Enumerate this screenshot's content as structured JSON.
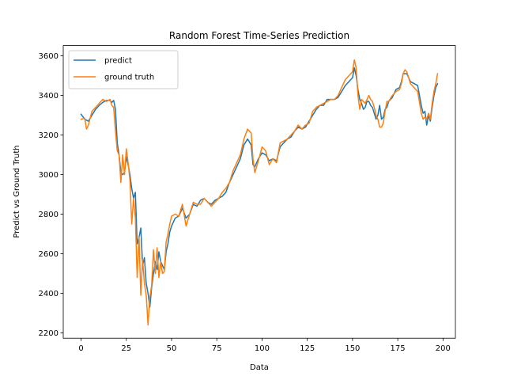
{
  "chart_data": {
    "type": "line",
    "title": "Random Forest Time-Series Prediction",
    "xlabel": "Data",
    "ylabel": "Predict vs Ground Truth",
    "xlim": [
      -9.85,
      206.85
    ],
    "ylim": [
      2173,
      3652
    ],
    "xticks": [
      0,
      25,
      50,
      75,
      100,
      125,
      150,
      175,
      200
    ],
    "yticks": [
      2200,
      2400,
      2600,
      2800,
      3000,
      3200,
      3400,
      3600
    ],
    "grid": false,
    "legend_position": "top-left",
    "series": [
      {
        "name": "predict",
        "color": "#1f77b4",
        "points": [
          [
            0,
            3305
          ],
          [
            2,
            3280
          ],
          [
            4,
            3270
          ],
          [
            6,
            3300
          ],
          [
            8,
            3330
          ],
          [
            10,
            3350
          ],
          [
            12,
            3365
          ],
          [
            14,
            3375
          ],
          [
            16,
            3375
          ],
          [
            17,
            3365
          ],
          [
            18,
            3375
          ],
          [
            19,
            3330
          ],
          [
            20,
            3160
          ],
          [
            21,
            3100
          ],
          [
            22,
            3010
          ],
          [
            23,
            3000
          ],
          [
            24,
            3010
          ],
          [
            25,
            3090
          ],
          [
            26,
            3050
          ],
          [
            27,
            3000
          ],
          [
            28,
            2930
          ],
          [
            29,
            2880
          ],
          [
            30,
            2910
          ],
          [
            31,
            2650
          ],
          [
            32,
            2680
          ],
          [
            33,
            2730
          ],
          [
            34,
            2540
          ],
          [
            35,
            2580
          ],
          [
            36,
            2450
          ],
          [
            37,
            2400
          ],
          [
            38,
            2330
          ],
          [
            39,
            2430
          ],
          [
            40,
            2500
          ],
          [
            41,
            2560
          ],
          [
            42,
            2520
          ],
          [
            43,
            2610
          ],
          [
            44,
            2560
          ],
          [
            45,
            2540
          ],
          [
            46,
            2520
          ],
          [
            47,
            2610
          ],
          [
            48,
            2650
          ],
          [
            49,
            2710
          ],
          [
            50,
            2740
          ],
          [
            52,
            2780
          ],
          [
            54,
            2790
          ],
          [
            56,
            2830
          ],
          [
            58,
            2780
          ],
          [
            60,
            2800
          ],
          [
            62,
            2850
          ],
          [
            64,
            2840
          ],
          [
            66,
            2870
          ],
          [
            68,
            2880
          ],
          [
            70,
            2860
          ],
          [
            72,
            2850
          ],
          [
            74,
            2870
          ],
          [
            76,
            2880
          ],
          [
            78,
            2890
          ],
          [
            80,
            2910
          ],
          [
            82,
            2960
          ],
          [
            84,
            3000
          ],
          [
            86,
            3040
          ],
          [
            88,
            3080
          ],
          [
            90,
            3150
          ],
          [
            92,
            3180
          ],
          [
            94,
            3150
          ],
          [
            95,
            3050
          ],
          [
            96,
            3040
          ],
          [
            98,
            3080
          ],
          [
            100,
            3110
          ],
          [
            102,
            3100
          ],
          [
            104,
            3070
          ],
          [
            106,
            3080
          ],
          [
            108,
            3070
          ],
          [
            110,
            3140
          ],
          [
            112,
            3160
          ],
          [
            114,
            3180
          ],
          [
            116,
            3190
          ],
          [
            118,
            3220
          ],
          [
            120,
            3240
          ],
          [
            122,
            3230
          ],
          [
            124,
            3240
          ],
          [
            126,
            3270
          ],
          [
            128,
            3300
          ],
          [
            130,
            3330
          ],
          [
            132,
            3350
          ],
          [
            134,
            3350
          ],
          [
            136,
            3380
          ],
          [
            138,
            3380
          ],
          [
            140,
            3380
          ],
          [
            142,
            3390
          ],
          [
            144,
            3420
          ],
          [
            146,
            3450
          ],
          [
            148,
            3470
          ],
          [
            150,
            3490
          ],
          [
            151,
            3540
          ],
          [
            152,
            3500
          ],
          [
            153,
            3430
          ],
          [
            154,
            3380
          ],
          [
            155,
            3360
          ],
          [
            156,
            3330
          ],
          [
            157,
            3340
          ],
          [
            158,
            3370
          ],
          [
            159,
            3370
          ],
          [
            160,
            3350
          ],
          [
            161,
            3340
          ],
          [
            162,
            3310
          ],
          [
            163,
            3280
          ],
          [
            164,
            3300
          ],
          [
            165,
            3350
          ],
          [
            166,
            3280
          ],
          [
            167,
            3290
          ],
          [
            168,
            3330
          ],
          [
            169,
            3340
          ],
          [
            170,
            3370
          ],
          [
            172,
            3390
          ],
          [
            174,
            3430
          ],
          [
            176,
            3440
          ],
          [
            177,
            3470
          ],
          [
            178,
            3510
          ],
          [
            179,
            3510
          ],
          [
            180,
            3510
          ],
          [
            181,
            3490
          ],
          [
            182,
            3470
          ],
          [
            184,
            3460
          ],
          [
            186,
            3450
          ],
          [
            188,
            3350
          ],
          [
            189,
            3310
          ],
          [
            190,
            3320
          ],
          [
            191,
            3250
          ],
          [
            192,
            3300
          ],
          [
            193,
            3270
          ],
          [
            194,
            3340
          ],
          [
            195,
            3400
          ],
          [
            196,
            3440
          ],
          [
            197,
            3460
          ]
        ]
      },
      {
        "name": "ground truth",
        "color": "#ff7f0e",
        "points": [
          [
            0,
            3280
          ],
          [
            2,
            3285
          ],
          [
            3,
            3230
          ],
          [
            4,
            3250
          ],
          [
            6,
            3320
          ],
          [
            8,
            3340
          ],
          [
            10,
            3360
          ],
          [
            12,
            3380
          ],
          [
            14,
            3370
          ],
          [
            16,
            3380
          ],
          [
            17,
            3350
          ],
          [
            18,
            3340
          ],
          [
            19,
            3220
          ],
          [
            20,
            3120
          ],
          [
            21,
            3100
          ],
          [
            22,
            2960
          ],
          [
            23,
            3100
          ],
          [
            24,
            3000
          ],
          [
            25,
            3130
          ],
          [
            26,
            3060
          ],
          [
            27,
            2970
          ],
          [
            28,
            2750
          ],
          [
            29,
            2880
          ],
          [
            30,
            2780
          ],
          [
            31,
            2480
          ],
          [
            32,
            2690
          ],
          [
            33,
            2390
          ],
          [
            34,
            2570
          ],
          [
            35,
            2450
          ],
          [
            36,
            2390
          ],
          [
            37,
            2240
          ],
          [
            38,
            2380
          ],
          [
            39,
            2440
          ],
          [
            40,
            2620
          ],
          [
            41,
            2500
          ],
          [
            42,
            2630
          ],
          [
            43,
            2480
          ],
          [
            44,
            2560
          ],
          [
            45,
            2500
          ],
          [
            46,
            2510
          ],
          [
            47,
            2660
          ],
          [
            48,
            2700
          ],
          [
            49,
            2750
          ],
          [
            50,
            2790
          ],
          [
            52,
            2800
          ],
          [
            54,
            2790
          ],
          [
            56,
            2850
          ],
          [
            58,
            2740
          ],
          [
            60,
            2800
          ],
          [
            62,
            2860
          ],
          [
            64,
            2850
          ],
          [
            66,
            2850
          ],
          [
            68,
            2880
          ],
          [
            70,
            2860
          ],
          [
            72,
            2840
          ],
          [
            74,
            2860
          ],
          [
            76,
            2880
          ],
          [
            78,
            2910
          ],
          [
            80,
            2930
          ],
          [
            82,
            2960
          ],
          [
            84,
            3020
          ],
          [
            86,
            3060
          ],
          [
            88,
            3100
          ],
          [
            90,
            3180
          ],
          [
            92,
            3230
          ],
          [
            94,
            3210
          ],
          [
            95,
            3080
          ],
          [
            96,
            3010
          ],
          [
            98,
            3070
          ],
          [
            100,
            3140
          ],
          [
            102,
            3120
          ],
          [
            104,
            3050
          ],
          [
            106,
            3080
          ],
          [
            108,
            3060
          ],
          [
            110,
            3160
          ],
          [
            112,
            3170
          ],
          [
            114,
            3180
          ],
          [
            116,
            3200
          ],
          [
            118,
            3220
          ],
          [
            120,
            3250
          ],
          [
            122,
            3230
          ],
          [
            124,
            3250
          ],
          [
            126,
            3260
          ],
          [
            128,
            3320
          ],
          [
            130,
            3340
          ],
          [
            132,
            3350
          ],
          [
            134,
            3360
          ],
          [
            136,
            3370
          ],
          [
            138,
            3380
          ],
          [
            140,
            3380
          ],
          [
            142,
            3400
          ],
          [
            144,
            3440
          ],
          [
            146,
            3480
          ],
          [
            148,
            3500
          ],
          [
            150,
            3520
          ],
          [
            151,
            3580
          ],
          [
            152,
            3540
          ],
          [
            153,
            3400
          ],
          [
            154,
            3330
          ],
          [
            155,
            3380
          ],
          [
            156,
            3370
          ],
          [
            157,
            3360
          ],
          [
            158,
            3380
          ],
          [
            159,
            3400
          ],
          [
            160,
            3380
          ],
          [
            161,
            3370
          ],
          [
            162,
            3340
          ],
          [
            163,
            3300
          ],
          [
            164,
            3280
          ],
          [
            165,
            3240
          ],
          [
            166,
            3240
          ],
          [
            167,
            3260
          ],
          [
            168,
            3320
          ],
          [
            169,
            3370
          ],
          [
            170,
            3370
          ],
          [
            172,
            3400
          ],
          [
            174,
            3420
          ],
          [
            176,
            3430
          ],
          [
            177,
            3460
          ],
          [
            178,
            3510
          ],
          [
            179,
            3530
          ],
          [
            180,
            3520
          ],
          [
            181,
            3490
          ],
          [
            182,
            3460
          ],
          [
            184,
            3440
          ],
          [
            186,
            3420
          ],
          [
            188,
            3310
          ],
          [
            189,
            3280
          ],
          [
            190,
            3290
          ],
          [
            191,
            3280
          ],
          [
            192,
            3310
          ],
          [
            193,
            3280
          ],
          [
            194,
            3360
          ],
          [
            195,
            3420
          ],
          [
            196,
            3460
          ],
          [
            197,
            3510
          ]
        ]
      }
    ]
  }
}
